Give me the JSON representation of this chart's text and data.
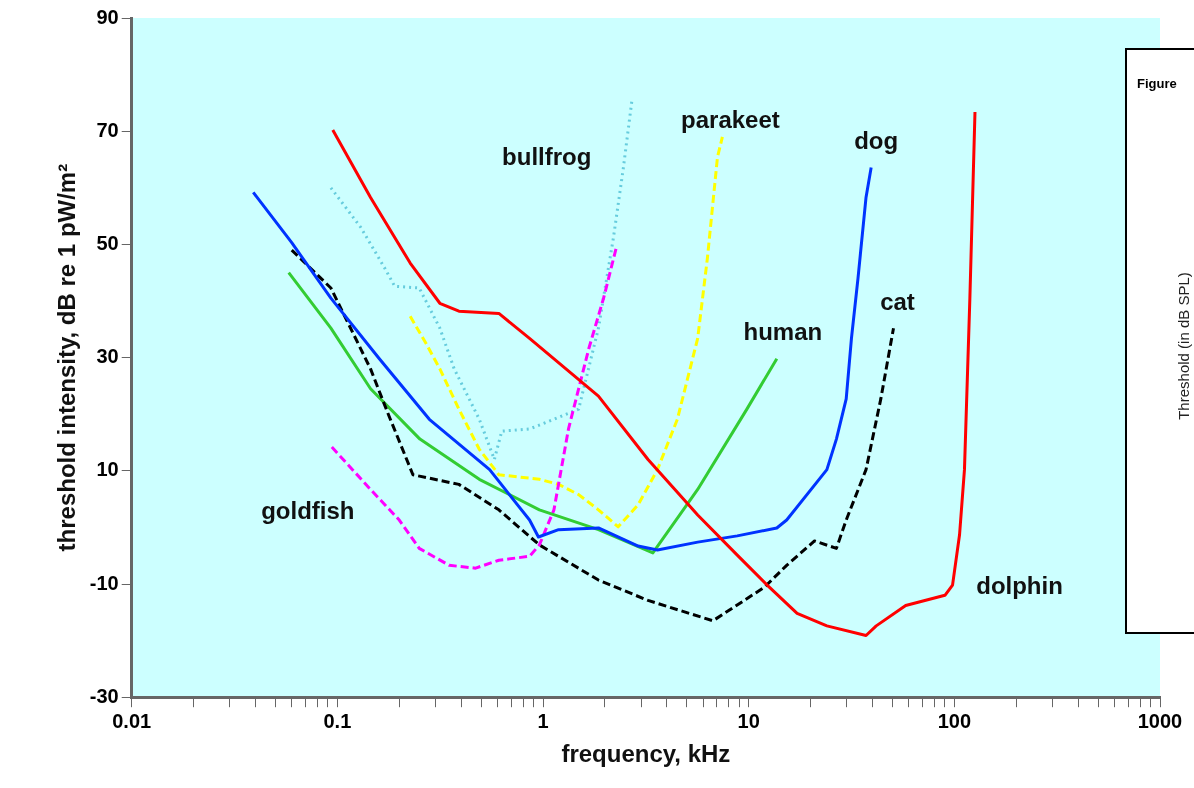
{
  "chart_data": [
    {
      "type": "line",
      "xlabel": "frequency, kHz",
      "ylabel": "threshold intensity, dB re 1 pW/m²",
      "log": "x",
      "xlim": [
        0.01,
        1000
      ],
      "ylim": [
        -30,
        90
      ],
      "xticks": [
        0.01,
        {
          "value": 0.02,
          "label": null
        },
        {
          "value": 0.03,
          "label": null
        },
        {
          "value": 0.04,
          "label": null
        },
        {
          "value": 0.05,
          "label": null
        },
        {
          "value": 0.06,
          "label": null
        },
        {
          "value": 0.07,
          "label": null
        },
        {
          "value": 0.08,
          "label": null
        },
        {
          "value": 0.09,
          "label": null
        },
        0.1,
        {
          "value": 0.2,
          "label": null
        },
        {
          "value": 0.3,
          "label": null
        },
        {
          "value": 0.4,
          "label": null
        },
        {
          "value": 0.5,
          "label": null
        },
        {
          "value": 0.6,
          "label": null
        },
        {
          "value": 0.7,
          "label": null
        },
        {
          "value": 0.8,
          "label": null
        },
        {
          "value": 0.9,
          "label": null
        },
        1,
        {
          "value": 2,
          "label": null
        },
        {
          "value": 3,
          "label": null
        },
        {
          "value": 4,
          "label": null
        },
        {
          "value": 5,
          "label": null
        },
        {
          "value": 6,
          "label": null
        },
        {
          "value": 7,
          "label": null
        },
        {
          "value": 8,
          "label": null
        },
        {
          "value": 9,
          "label": null
        },
        10,
        {
          "value": 20,
          "label": null
        },
        {
          "value": 30,
          "label": null
        },
        {
          "value": 40,
          "label": null
        },
        {
          "value": 50,
          "label": null
        },
        {
          "value": 60,
          "label": null
        },
        {
          "value": 70,
          "label": null
        },
        {
          "value": 80,
          "label": null
        },
        {
          "value": 90,
          "label": null
        },
        100,
        {
          "value": 200,
          "label": null
        },
        {
          "value": 300,
          "label": null
        },
        {
          "value": 400,
          "label": null
        },
        {
          "value": 500,
          "label": null
        },
        {
          "value": 600,
          "label": null
        },
        {
          "value": 700,
          "label": null
        },
        {
          "value": 800,
          "label": null
        },
        {
          "value": 900,
          "label": null
        },
        1000
      ],
      "yticks": [
        -30,
        -10,
        10,
        30,
        50,
        70,
        90
      ],
      "series": [
        {
          "name": "dolphin",
          "color": "#ff0000",
          "line_style": "solid",
          "x": [
            0.095,
            0.145,
            0.226,
            0.315,
            0.39,
            0.61,
            0.86,
            1.86,
            3.24,
            5.65,
            8.8,
            12.3,
            17.2,
            24,
            37.2,
            41.7,
            58,
            90,
            98,
            106,
            112,
            119,
            126
          ],
          "values": [
            70.2,
            58.3,
            46.7,
            39.6,
            38.2,
            37.8,
            33.4,
            23.2,
            12,
            2.2,
            -4.9,
            -10.2,
            -15.2,
            -17.4,
            -19.1,
            -17.4,
            -13.8,
            -12,
            -10.2,
            -1.3,
            10.2,
            40.5,
            73.4
          ]
        },
        {
          "name": "dog",
          "color": "#0033ff",
          "line_style": "solid",
          "x": [
            0.039,
            0.06,
            0.093,
            0.16,
            0.28,
            0.55,
            0.86,
            0.95,
            1.19,
            1.86,
            2.9,
            3.6,
            5.65,
            8.8,
            13.7,
            15.3,
            24,
            26.7,
            29.8,
            31.6,
            34,
            37.2,
            39.4
          ],
          "values": [
            59.2,
            50.3,
            40.5,
            29.8,
            19.1,
            10.2,
            1.3,
            -1.7,
            -0.4,
            -0.1,
            -3.3,
            -4,
            -2.6,
            -1.5,
            -0.1,
            1.3,
            10.2,
            15.6,
            22.7,
            33.4,
            44,
            58.3,
            63.6
          ]
        },
        {
          "name": "cat",
          "color": "#000000",
          "line_style": "dashed",
          "x": [
            0.06,
            0.093,
            0.145,
            0.175,
            0.233,
            0.39,
            0.61,
            0.96,
            1.86,
            3.24,
            6.7,
            11.9,
            15.3,
            20.9,
            26.7,
            29.8,
            37.2,
            43.9,
            50.6
          ],
          "values": [
            49,
            42.3,
            28,
            20.4,
            9.3,
            7.6,
            3.1,
            -3.1,
            -9.3,
            -12.9,
            -16.5,
            -10.6,
            -6.7,
            -2.4,
            -3.7,
            1.3,
            10.2,
            22.7,
            35.2
          ]
        },
        {
          "name": "human",
          "color": "#33cc33",
          "line_style": "solid",
          "x": [
            0.058,
            0.093,
            0.145,
            0.252,
            0.49,
            0.96,
            1.86,
            3.42,
            5.65,
            9.8,
            13.7
          ],
          "values": [
            45,
            35.2,
            24.5,
            15.6,
            8.5,
            3.1,
            -0.4,
            -4.5,
            6.7,
            20.9,
            29.8
          ]
        },
        {
          "name": "goldfish",
          "color": "#ff00ff",
          "line_style": "dashed",
          "x": [
            0.094,
            0.145,
            0.2,
            0.25,
            0.35,
            0.47,
            0.61,
            0.86,
            0.96,
            1.13,
            1.33,
            1.67,
            1.97,
            2.27
          ],
          "values": [
            14.2,
            6.7,
            1.3,
            -3.7,
            -6.7,
            -7.2,
            -5.8,
            -5.1,
            -3.1,
            3.1,
            17.4,
            31.6,
            40.5,
            49.4
          ]
        },
        {
          "name": "bullfrog",
          "color": "#66ccdd",
          "line_style": "dotted",
          "x": [
            0.093,
            0.13,
            0.17,
            0.19,
            0.25,
            0.315,
            0.37,
            0.49,
            0.58,
            0.63,
            0.86,
            1.13,
            1.49,
            1.86,
            2.2,
            2.46,
            2.7
          ],
          "values": [
            60,
            53,
            45.8,
            42.6,
            42.3,
            35.2,
            28,
            19.1,
            12,
            17,
            17.4,
            19.1,
            20.9,
            35.2,
            51.2,
            63.6,
            75.2
          ]
        },
        {
          "name": "parakeet",
          "color": "#ffff00",
          "line_style": "dashed",
          "x": [
            0.226,
            0.27,
            0.315,
            0.39,
            0.49,
            0.61,
            0.96,
            1.19,
            1.49,
            1.86,
            2.32,
            2.9,
            3.6,
            4.5,
            5.65,
            6.3,
            7.05,
            7.45
          ],
          "values": [
            37.3,
            32.5,
            28,
            20.9,
            13.8,
            9.3,
            8.5,
            7.6,
            5.8,
            3.1,
            0.1,
            4,
            10.2,
            19.1,
            33.4,
            47.6,
            65.4,
            69
          ]
        }
      ]
    },
    {
      "type": "other",
      "title": "Figure",
      "ylabel": "Threshold (in dB SPL)"
    }
  ]
}
